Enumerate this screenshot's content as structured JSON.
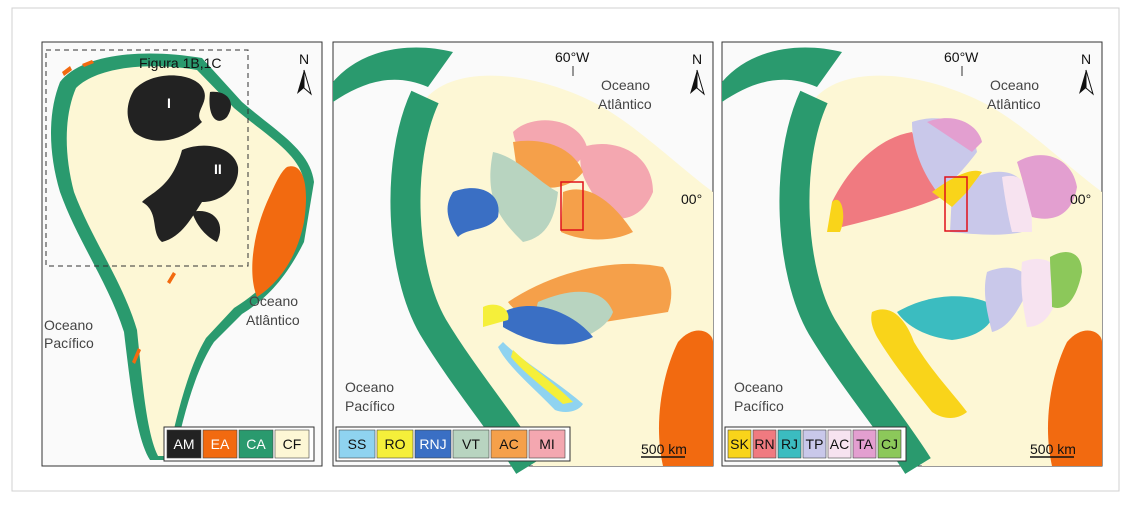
{
  "panels": [
    {
      "inset_label": "Figura 1B,1C",
      "north": "N",
      "regions": [
        "I",
        "II"
      ],
      "ocean_west": [
        "Oceano",
        "Pacífico"
      ],
      "ocean_east": [
        "Oceano",
        "Atlântico"
      ],
      "legend": [
        {
          "label": "AM",
          "color": "#222222"
        },
        {
          "label": "EA",
          "color": "#f26a10"
        },
        {
          "label": "CA",
          "color": "#2a9a6e"
        },
        {
          "label": "CF",
          "color": "#fdf7d5"
        }
      ]
    },
    {
      "meridian": "60°W",
      "north": "N",
      "ocean_east": [
        "Oceano",
        "Atlântico"
      ],
      "parallel": "00°",
      "ocean_west": [
        "Oceano",
        "Pacífico"
      ],
      "scale": "500 km",
      "legend": [
        {
          "label": "SS",
          "color": "#8fd3f0"
        },
        {
          "label": "RO",
          "color": "#f5ef3a"
        },
        {
          "label": "RNJ",
          "color": "#3a6fc4"
        },
        {
          "label": "VT",
          "color": "#b8d4c0"
        },
        {
          "label": "AC",
          "color": "#f5a04a"
        },
        {
          "label": "MI",
          "color": "#f4a7b0"
        }
      ]
    },
    {
      "meridian": "60°W",
      "north": "N",
      "ocean_east": [
        "Oceano",
        "Atlântico"
      ],
      "parallel": "00°",
      "ocean_west": [
        "Oceano",
        "Pacífico"
      ],
      "scale": "500 km",
      "legend": [
        {
          "label": "SK",
          "color": "#f9d41a"
        },
        {
          "label": "RN",
          "color": "#f07a80"
        },
        {
          "label": "RJ",
          "color": "#3bbcc0"
        },
        {
          "label": "TP",
          "color": "#c9c8ea"
        },
        {
          "label": "AC",
          "color": "#f7e3f0"
        },
        {
          "label": "TA",
          "color": "#e39fd0"
        },
        {
          "label": "CJ",
          "color": "#8cc85a"
        }
      ]
    }
  ]
}
